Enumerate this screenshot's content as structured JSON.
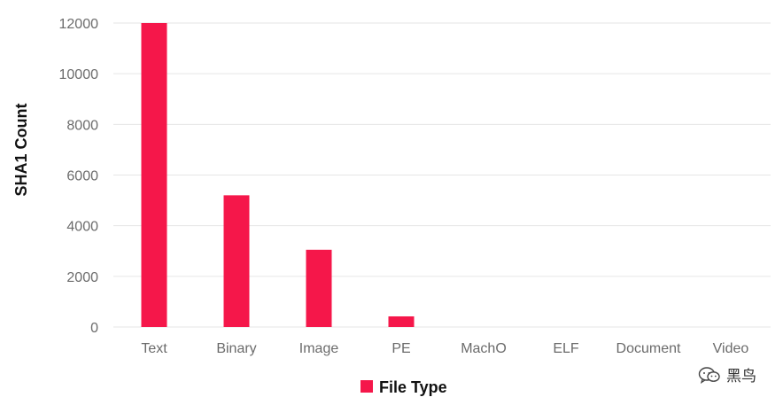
{
  "chart_data": {
    "type": "bar",
    "categories": [
      "Text",
      "Binary",
      "Image",
      "PE",
      "MachO",
      "ELF",
      "Document",
      "Video"
    ],
    "series": [
      {
        "name": "File Type",
        "values": [
          12000,
          5200,
          3050,
          420,
          0,
          0,
          0,
          0
        ]
      }
    ],
    "ylabel": "SHA1 Count",
    "xlabel": "",
    "ylim": [
      0,
      12000
    ],
    "yticks": [
      0,
      2000,
      4000,
      6000,
      8000,
      10000,
      12000
    ],
    "grid": true,
    "legend_position": "bottom-center",
    "bar_color": "#f5174a"
  },
  "watermark": {
    "text": "黑鸟",
    "icon": "wechat-icon"
  }
}
